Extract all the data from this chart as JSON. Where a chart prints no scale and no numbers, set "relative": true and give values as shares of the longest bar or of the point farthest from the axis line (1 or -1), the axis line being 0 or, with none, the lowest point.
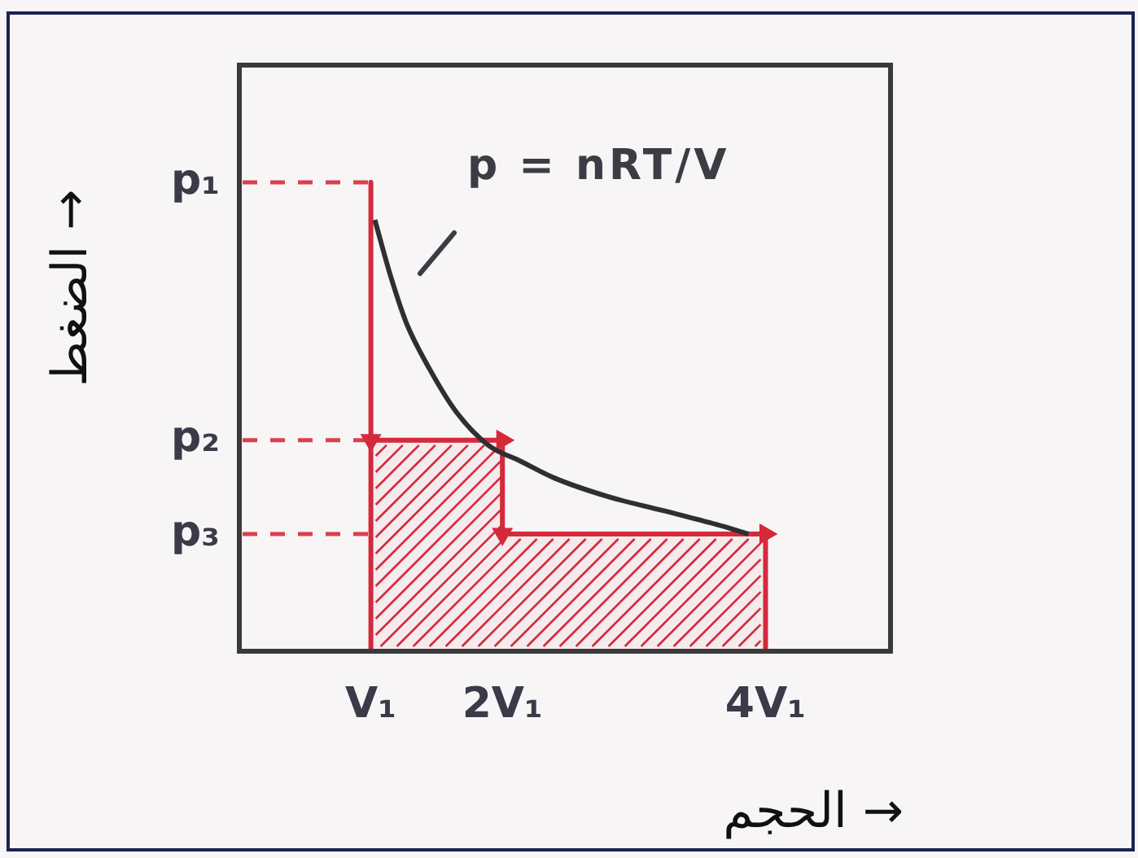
{
  "chart_data": {
    "type": "line",
    "relative": true,
    "xlabel": "الحجم →",
    "ylabel": "الضغط →",
    "annotations": [
      "p = nRT/V"
    ],
    "xlim": [
      0,
      4.95
    ],
    "xticks": [
      {
        "value": 1,
        "label": "V₁"
      },
      {
        "value": 2,
        "label": "2V₁"
      },
      {
        "value": 4,
        "label": "4V₁"
      }
    ],
    "ref_lines": [
      {
        "axis": "y",
        "value": 1,
        "label": "p₁",
        "color": "#d8404e",
        "line_style": "dashed"
      },
      {
        "axis": "y",
        "value": 0.45,
        "label": "p₂",
        "color": "#d8404e",
        "line_style": "dashed"
      },
      {
        "axis": "y",
        "value": 0.25,
        "label": "p₃",
        "color": "#d8404e",
        "line_style": "dashed"
      }
    ],
    "grid": false,
    "legend": false,
    "marker": "none",
    "series": [
      {
        "type": "line",
        "color": "#d42a3a",
        "marker": "triangle",
        "x": [
          1,
          1,
          2,
          2,
          4
        ],
        "values": [
          1,
          0.45,
          0.45,
          0.25,
          0.25
        ]
      },
      {
        "type": "area",
        "color": "#d42a3a",
        "x": [
          1,
          2,
          2,
          4
        ],
        "values": [
          0.45,
          0.45,
          0.25,
          0.25
        ]
      },
      {
        "type": "line",
        "color": "#d42a3a",
        "x": [
          1,
          1
        ],
        "values": [
          0.45,
          0
        ]
      },
      {
        "type": "line",
        "color": "#d42a3a",
        "x": [
          4,
          4
        ],
        "values": [
          0.25,
          0
        ]
      },
      {
        "type": "line",
        "color": "#2f2f33",
        "x": [
          1.03,
          1.15,
          1.27,
          1.45,
          1.65,
          1.89,
          2.14,
          2.39,
          2.8,
          3.22,
          3.63,
          3.87
        ],
        "values": [
          0.92,
          0.8,
          0.7,
          0.6,
          0.51,
          0.44,
          0.405,
          0.37,
          0.33,
          0.3,
          0.27,
          0.25
        ]
      }
    ]
  }
}
